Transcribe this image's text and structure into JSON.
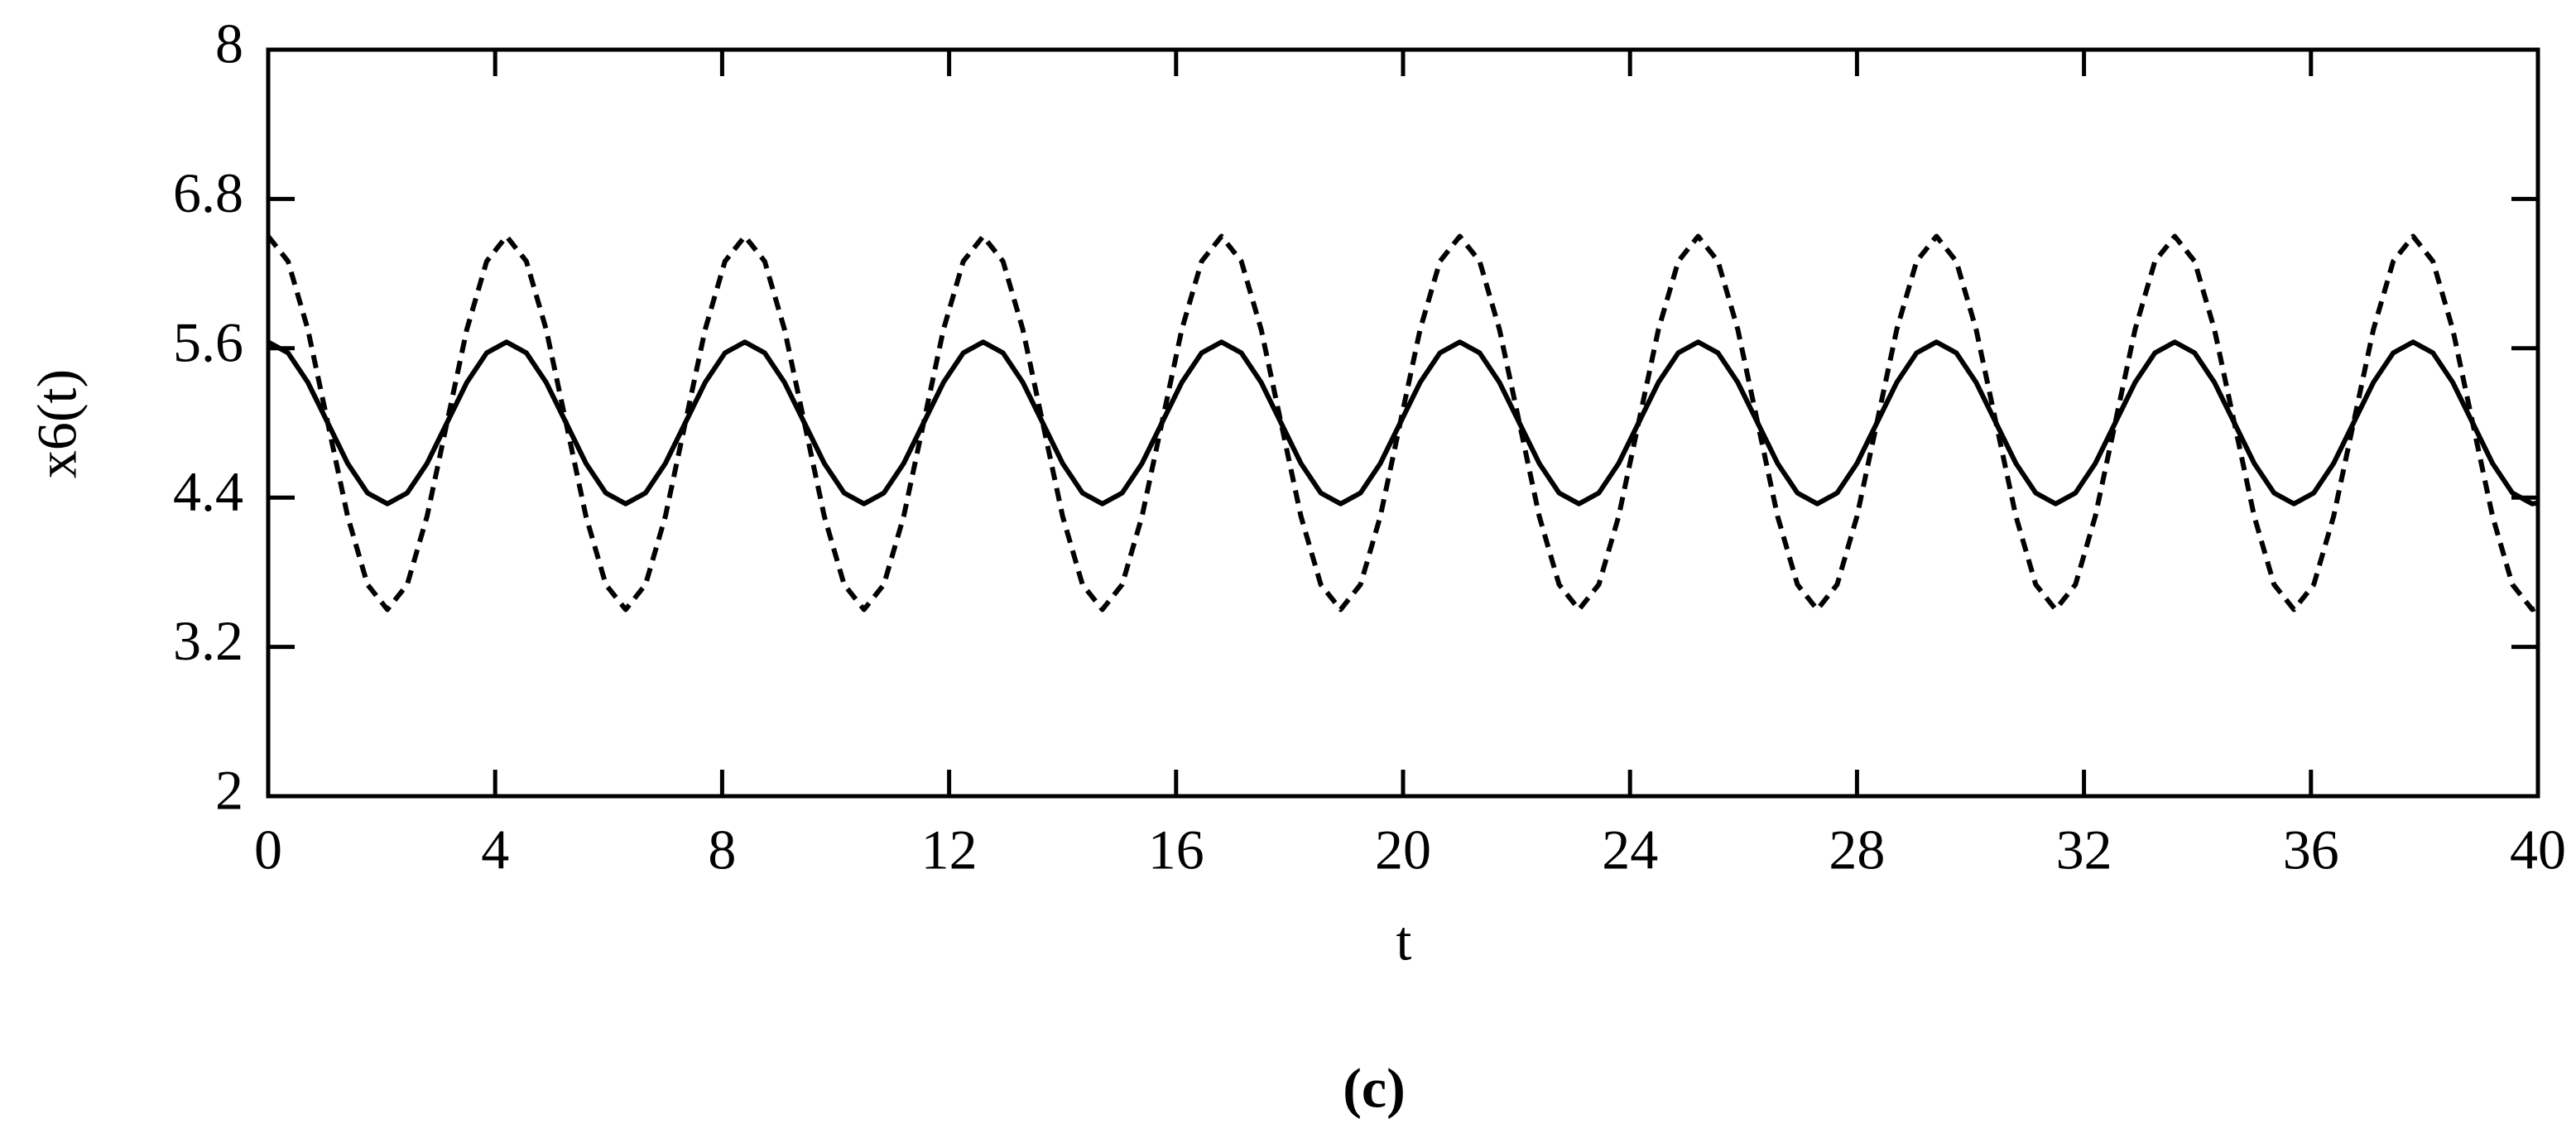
{
  "chart_data": {
    "type": "line",
    "caption": "(c)",
    "x_label": "t",
    "y_label": "x6(t)",
    "x": [
      0,
      0.35,
      0.7,
      1.05,
      1.4,
      1.75,
      2.1,
      2.45,
      2.8,
      3.15,
      3.5,
      3.85,
      4.2,
      4.55,
      4.9,
      5.25,
      5.6,
      5.95,
      6.3,
      6.65,
      7,
      7.35,
      7.7,
      8.05,
      8.4,
      8.75,
      9.1,
      9.45,
      9.8,
      10.15,
      10.5,
      10.85,
      11.2,
      11.55,
      11.9,
      12.25,
      12.6,
      12.95,
      13.3,
      13.65,
      14,
      14.35,
      14.7,
      15.05,
      15.4,
      15.75,
      16.1,
      16.45,
      16.8,
      17.15,
      17.5,
      17.85,
      18.2,
      18.55,
      18.9,
      19.25,
      19.6,
      19.95,
      20.3,
      20.65,
      21,
      21.35,
      21.7,
      22.05,
      22.4,
      22.75,
      23.1,
      23.45,
      23.8,
      24.15,
      24.5,
      24.85,
      25.2,
      25.55,
      25.9,
      26.25,
      26.6,
      26.95,
      27.3,
      27.65,
      28,
      28.35,
      28.7,
      29.05,
      29.4,
      29.75,
      30.1,
      30.45,
      30.8,
      31.15,
      31.5,
      31.85,
      32.2,
      32.55,
      32.9,
      33.25,
      33.6,
      33.95,
      34.3,
      34.65,
      35,
      35.35,
      35.7,
      36.05,
      36.4,
      36.75,
      37.1,
      37.45,
      37.8,
      38.15,
      38.5,
      38.85,
      39.2,
      39.55,
      39.9,
      40
    ],
    "series": [
      {
        "color": "#000000",
        "style": "solid",
        "values": [
          5.65,
          5.563,
          5.325,
          5.0,
          4.675,
          4.437,
          4.35,
          4.437,
          4.675,
          5.0,
          5.325,
          5.563,
          5.65,
          5.563,
          5.325,
          5.0,
          4.675,
          4.437,
          4.35,
          4.437,
          4.675,
          5.0,
          5.325,
          5.563,
          5.65,
          5.563,
          5.325,
          5.0,
          4.675,
          4.437,
          4.35,
          4.437,
          4.675,
          5.0,
          5.325,
          5.563,
          5.65,
          5.563,
          5.325,
          5.0,
          4.675,
          4.437,
          4.35,
          4.437,
          4.675,
          5.0,
          5.325,
          5.563,
          5.65,
          5.563,
          5.325,
          5.0,
          4.675,
          4.437,
          4.35,
          4.437,
          4.675,
          5.0,
          5.325,
          5.563,
          5.65,
          5.563,
          5.325,
          5.0,
          4.675,
          4.437,
          4.35,
          4.437,
          4.675,
          5.0,
          5.325,
          5.563,
          5.65,
          5.563,
          5.325,
          5.0,
          4.675,
          4.437,
          4.35,
          4.437,
          4.675,
          5.0,
          5.325,
          5.563,
          5.65,
          5.563,
          5.325,
          5.0,
          4.675,
          4.437,
          4.35,
          4.437,
          4.675,
          5.0,
          5.325,
          5.563,
          5.65,
          5.563,
          5.325,
          5.0,
          4.675,
          4.437,
          4.35,
          4.437,
          4.675,
          5.0,
          5.325,
          5.563,
          5.65,
          5.563,
          5.325,
          5.0,
          4.675,
          4.437,
          4.35,
          4.357
        ]
      },
      {
        "color": "#000000",
        "style": "dashed",
        "values": [
          6.5,
          6.299,
          5.75,
          5.0,
          4.25,
          3.701,
          3.5,
          3.701,
          4.25,
          5.0,
          5.75,
          6.299,
          6.5,
          6.299,
          5.75,
          5.0,
          4.25,
          3.701,
          3.5,
          3.701,
          4.25,
          5.0,
          5.75,
          6.299,
          6.5,
          6.299,
          5.75,
          5.0,
          4.25,
          3.701,
          3.5,
          3.701,
          4.25,
          5.0,
          5.75,
          6.299,
          6.5,
          6.299,
          5.75,
          5.0,
          4.25,
          3.701,
          3.5,
          3.701,
          4.25,
          5.0,
          5.75,
          6.299,
          6.5,
          6.299,
          5.75,
          5.0,
          4.25,
          3.701,
          3.5,
          3.701,
          4.25,
          5.0,
          5.75,
          6.299,
          6.5,
          6.299,
          5.75,
          5.0,
          4.25,
          3.701,
          3.5,
          3.701,
          4.25,
          5.0,
          5.75,
          6.299,
          6.5,
          6.299,
          5.75,
          5.0,
          4.25,
          3.701,
          3.5,
          3.701,
          4.25,
          5.0,
          5.75,
          6.299,
          6.5,
          6.299,
          5.75,
          5.0,
          4.25,
          3.701,
          3.5,
          3.701,
          4.25,
          5.0,
          5.75,
          6.299,
          6.5,
          6.299,
          5.75,
          5.0,
          4.25,
          3.701,
          3.5,
          3.701,
          4.25,
          5.0,
          5.75,
          6.299,
          6.5,
          6.299,
          5.75,
          5.0,
          4.25,
          3.701,
          3.5,
          3.517
        ]
      }
    ],
    "xlim": [
      0,
      40
    ],
    "xticks": [
      0,
      4,
      8,
      12,
      16,
      20,
      24,
      28,
      32,
      36,
      40
    ],
    "ylim": [
      2,
      8
    ],
    "yticks": [
      2,
      3.2,
      4.4,
      5.6,
      6.8,
      8
    ],
    "grid": false
  }
}
